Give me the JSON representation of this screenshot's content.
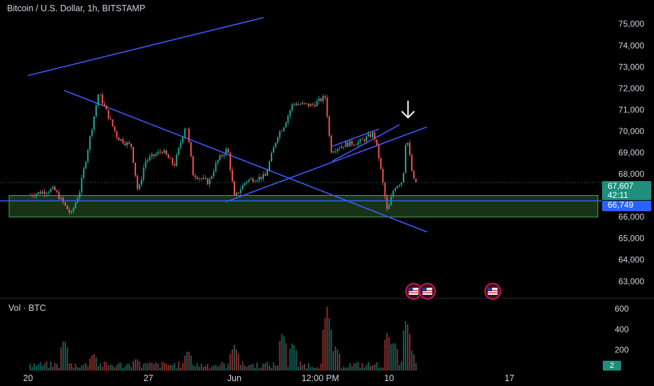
{
  "header": {
    "symbol_title": "Bitcoin / U.S. Dollar, 1h, BITSTAMP",
    "volume_title": "Vol · BTC"
  },
  "price_badges": {
    "last_price": "67,607",
    "countdown": "42:11",
    "line_level": "66,749",
    "volume_badge": "2"
  },
  "colors": {
    "background": "#000000",
    "up": "#26a69a",
    "down": "#ef5350",
    "trendline": "#3d5afe",
    "zone_fill": "#1b3b1b",
    "zone_border": "#4caf50",
    "level_line": "#2962ff",
    "last_price": "#1e8f7c"
  },
  "icons": [
    "us-flag-event-icon",
    "down-arrow-icon"
  ],
  "chart_data": [
    {
      "type": "candlestick",
      "title": "Bitcoin / U.S. Dollar, 1h, BITSTAMP",
      "y_ticks": [
        "75,000",
        "74,000",
        "73,000",
        "72,000",
        "71,000",
        "70,000",
        "69,000",
        "68,000",
        "67,000",
        "66,000",
        "65,000",
        "64,000",
        "63,000"
      ],
      "x_ticks": [
        "20",
        "27",
        "Jun",
        "12:00 PM",
        "10",
        "17"
      ],
      "ylim": [
        62600,
        75400
      ],
      "grid": false,
      "price_path": [
        {
          "t": 0,
          "price": 67000
        },
        {
          "t": 1.5,
          "price": 67300
        },
        {
          "t": 2.5,
          "price": 66100
        },
        {
          "t": 3.0,
          "price": 67200
        },
        {
          "t": 4.1,
          "price": 71800
        },
        {
          "t": 5.2,
          "price": 69700
        },
        {
          "t": 6.0,
          "price": 69300
        },
        {
          "t": 6.4,
          "price": 67100
        },
        {
          "t": 6.8,
          "price": 68600
        },
        {
          "t": 7.8,
          "price": 69100
        },
        {
          "t": 8.5,
          "price": 68400
        },
        {
          "t": 9.2,
          "price": 70400
        },
        {
          "t": 9.6,
          "price": 68000
        },
        {
          "t": 10.5,
          "price": 67600
        },
        {
          "t": 11.0,
          "price": 68600
        },
        {
          "t": 11.6,
          "price": 69200
        },
        {
          "t": 12.0,
          "price": 66900
        },
        {
          "t": 12.7,
          "price": 67700
        },
        {
          "t": 13.8,
          "price": 67900
        },
        {
          "t": 14.5,
          "price": 69800
        },
        {
          "t": 14.9,
          "price": 70300
        },
        {
          "t": 15.4,
          "price": 71300
        },
        {
          "t": 16.5,
          "price": 71200
        },
        {
          "t": 17.3,
          "price": 71600
        },
        {
          "t": 17.6,
          "price": 69100
        },
        {
          "t": 18.5,
          "price": 69400
        },
        {
          "t": 19.3,
          "price": 69500
        },
        {
          "t": 20.1,
          "price": 69900
        },
        {
          "t": 20.4,
          "price": 68800
        },
        {
          "t": 20.9,
          "price": 66200
        },
        {
          "t": 21.3,
          "price": 67400
        },
        {
          "t": 21.8,
          "price": 67700
        },
        {
          "t": 22.0,
          "price": 69900
        },
        {
          "t": 22.4,
          "price": 67700
        },
        {
          "t": 22.6,
          "price": 67600
        }
      ],
      "annotations": {
        "support_zone": [
          66000,
          67000
        ],
        "horizontal_level": 66749,
        "last_price_line": 67607,
        "trendlines": [
          {
            "from": {
              "t": 0,
              "price": 72600
            },
            "to": {
              "t": 13.7,
              "price": 75300
            }
          },
          {
            "from": {
              "t": 2.1,
              "price": 71900
            },
            "to": {
              "t": 23.2,
              "price": 65300
            }
          },
          {
            "from": {
              "t": 11.5,
              "price": 66700
            },
            "to": {
              "t": 23.2,
              "price": 70200
            }
          },
          {
            "from": {
              "t": 17.7,
              "price": 68600
            },
            "to": {
              "t": 21.6,
              "price": 70300
            }
          },
          {
            "from": {
              "t": 17.7,
              "price": 69300
            },
            "to": {
              "t": 20.4,
              "price": 70100
            }
          }
        ],
        "arrow_marker": {
          "t": 22.1,
          "price": 70700
        },
        "events": [
          {
            "t": 22.1
          },
          {
            "t": 22.9
          },
          {
            "t": 26.7
          }
        ]
      }
    },
    {
      "type": "bar",
      "title": "Vol · BTC",
      "y_ticks": [
        "600",
        "400",
        "200"
      ],
      "ylim": [
        0,
        620
      ],
      "volume_spikes": [
        {
          "t": 2.1,
          "volume": 310
        },
        {
          "t": 3.8,
          "volume": 170
        },
        {
          "t": 6.3,
          "volume": 120
        },
        {
          "t": 9.3,
          "volume": 200
        },
        {
          "t": 12.0,
          "volume": 250
        },
        {
          "t": 14.8,
          "volume": 380
        },
        {
          "t": 15.4,
          "volume": 280
        },
        {
          "t": 17.4,
          "volume": 620
        },
        {
          "t": 17.9,
          "volume": 240
        },
        {
          "t": 20.9,
          "volume": 380
        },
        {
          "t": 21.3,
          "volume": 290
        },
        {
          "t": 22.0,
          "volume": 510
        },
        {
          "t": 22.3,
          "volume": 200
        }
      ]
    }
  ]
}
